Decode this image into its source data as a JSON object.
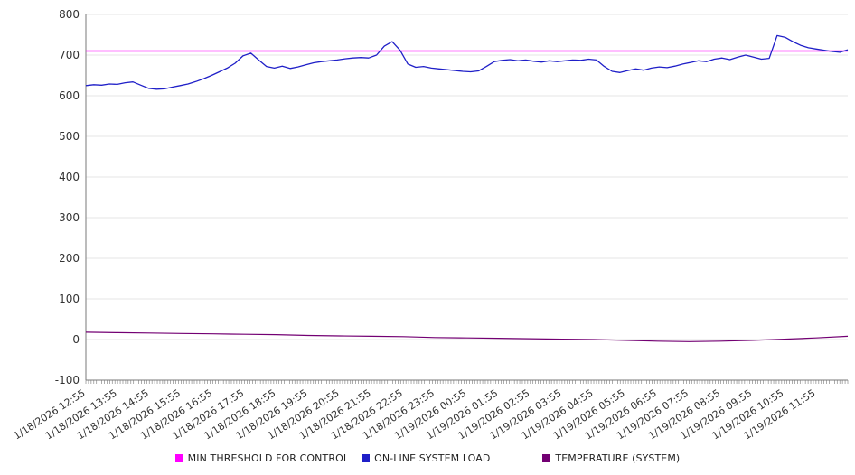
{
  "chart_data": {
    "type": "line",
    "title": "",
    "grid": true,
    "legend_position": "bottom",
    "colors": {
      "grid": "#e4e4e4",
      "axis": "#7a7a7a",
      "tick_text": "#333333"
    },
    "y_axis": {
      "min": -100,
      "max": 800,
      "step": 100
    },
    "x_axis": {
      "hours_span": 24,
      "labels": [
        "1/18/2026 12:55",
        "1/18/2026 13:55",
        "1/18/2026 14:55",
        "1/18/2026 15:55",
        "1/18/2026 16:55",
        "1/18/2026 17:55",
        "1/18/2026 18:55",
        "1/18/2026 19:55",
        "1/18/2026 20:55",
        "1/18/2026 21:55",
        "1/18/2026 22:55",
        "1/18/2026 23:55",
        "1/19/2026 00:55",
        "1/19/2026 01:55",
        "1/19/2026 02:55",
        "1/19/2026 03:55",
        "1/19/2026 04:55",
        "1/19/2026 05:55",
        "1/19/2026 06:55",
        "1/19/2026 07:55",
        "1/19/2026 08:55",
        "1/19/2026 09:55",
        "1/19/2026 10:55",
        "1/19/2026 11:55"
      ]
    },
    "series": [
      {
        "name": "MIN THRESHOLD FOR CONTROL",
        "color": "#ff00ff",
        "width": 1.5,
        "values": [
          710,
          710
        ]
      },
      {
        "name": "ON-LINE SYSTEM LOAD",
        "color": "#1f1fc8",
        "width": 1.3,
        "values": [
          625,
          627,
          626,
          629,
          628,
          632,
          634,
          626,
          618,
          616,
          617,
          621,
          625,
          629,
          635,
          642,
          650,
          659,
          668,
          680,
          698,
          705,
          688,
          672,
          668,
          673,
          667,
          671,
          676,
          681,
          684,
          686,
          688,
          691,
          693,
          694,
          693,
          700,
          722,
          733,
          712,
          678,
          670,
          672,
          668,
          666,
          664,
          662,
          660,
          659,
          661,
          672,
          684,
          687,
          689,
          686,
          688,
          685,
          683,
          686,
          684,
          686,
          688,
          687,
          690,
          688,
          672,
          660,
          657,
          662,
          666,
          663,
          668,
          671,
          669,
          673,
          678,
          682,
          686,
          684,
          690,
          693,
          689,
          695,
          700,
          695,
          690,
          692,
          748,
          744,
          733,
          724,
          718,
          715,
          712,
          709,
          707,
          713
        ]
      },
      {
        "name": "TEMPERATURE (SYSTEM)",
        "color": "#730073",
        "width": 1.2,
        "values": [
          18,
          17,
          16,
          15,
          14,
          13,
          12,
          10,
          9,
          8,
          7,
          5,
          4,
          3,
          2,
          1,
          0,
          -2,
          -4,
          -5,
          -4,
          -2,
          1,
          4,
          8
        ]
      }
    ]
  }
}
